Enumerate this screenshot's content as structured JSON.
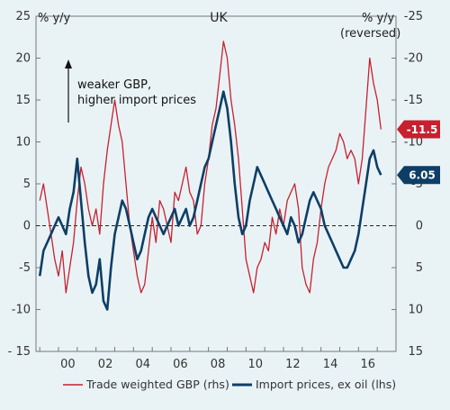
{
  "chart_data": {
    "type": "line",
    "title": "UK",
    "ylabel_left": "% y/y",
    "ylabel_right": "% y/y",
    "ylabel_right_note": "(reversed)",
    "annotation": [
      "weaker GBP,",
      "higher import prices"
    ],
    "x_ticks": [
      "00",
      "02",
      "04",
      "06",
      "08",
      "10",
      "12",
      "14",
      "16"
    ],
    "x_tick_years": [
      2000,
      2002,
      2004,
      2006,
      2008,
      2010,
      2012,
      2014,
      2016
    ],
    "xlim": [
      1998.8,
      2018.0
    ],
    "ylim": [
      -15,
      25
    ],
    "left_ticks": [
      -15,
      -10,
      -5,
      0,
      5,
      10,
      15,
      20,
      25
    ],
    "left_tick_labels": [
      "- 15",
      "-10",
      "-5",
      "0",
      "5",
      "10",
      "15",
      "20",
      "25"
    ],
    "right_ticks_labels": [
      "15",
      "10",
      "5",
      "0",
      "-5",
      "-10",
      "-15",
      "-20",
      "-25"
    ],
    "series": [
      {
        "name": "Trade weighted GBP (rhs)",
        "axis": "right",
        "reversed": true,
        "color": "#c8202f",
        "end_label": "-11.5",
        "x": [
          1999.0,
          1999.2,
          1999.4,
          1999.6,
          1999.8,
          2000.0,
          2000.2,
          2000.4,
          2000.6,
          2000.8,
          2001.0,
          2001.2,
          2001.4,
          2001.6,
          2001.8,
          2002.0,
          2002.2,
          2002.4,
          2002.6,
          2002.8,
          2003.0,
          2003.2,
          2003.4,
          2003.6,
          2003.8,
          2004.0,
          2004.2,
          2004.4,
          2004.6,
          2004.8,
          2005.0,
          2005.2,
          2005.4,
          2005.6,
          2005.8,
          2006.0,
          2006.2,
          2006.4,
          2006.6,
          2006.8,
          2007.0,
          2007.2,
          2007.4,
          2007.6,
          2007.8,
          2008.0,
          2008.2,
          2008.4,
          2008.6,
          2008.8,
          2009.0,
          2009.2,
          2009.4,
          2009.6,
          2009.8,
          2010.0,
          2010.2,
          2010.4,
          2010.6,
          2010.8,
          2011.0,
          2011.2,
          2011.4,
          2011.6,
          2011.8,
          2012.0,
          2012.2,
          2012.4,
          2012.6,
          2012.8,
          2013.0,
          2013.2,
          2013.4,
          2013.6,
          2013.8,
          2014.0,
          2014.2,
          2014.4,
          2014.6,
          2014.8,
          2015.0,
          2015.2,
          2015.4,
          2015.6,
          2015.8,
          2016.0,
          2016.2,
          2016.4,
          2016.6,
          2016.8,
          2017.0,
          2017.2
        ],
        "y": [
          -3,
          -5,
          -2,
          1,
          4,
          6,
          3,
          8,
          5,
          2,
          -3,
          -7,
          -5,
          -2,
          0,
          -2,
          1,
          -5,
          -9,
          -12,
          -15,
          -12,
          -10,
          -5,
          0,
          3,
          6,
          8,
          7,
          3,
          -1,
          2,
          -3,
          -2,
          0,
          2,
          -4,
          -3,
          -5,
          -7,
          -4,
          -3,
          1,
          0,
          -5,
          -8,
          -12,
          -14,
          -18,
          -22,
          -20,
          -15,
          -12,
          -8,
          -2,
          4,
          6,
          8,
          5,
          4,
          2,
          3,
          -1,
          1,
          -2,
          0,
          -3,
          -4,
          -5,
          -2,
          5,
          7,
          8,
          4,
          2,
          -2,
          -5,
          -7,
          -8,
          -9,
          -11,
          -10,
          -8,
          -9,
          -8,
          -5,
          -8,
          -14,
          -20,
          -17,
          -15,
          -11.5
        ]
      },
      {
        "name": "Import prices, ex oil (lhs)",
        "axis": "left",
        "reversed": false,
        "color": "#0e3e66",
        "end_label": "6.05",
        "x": [
          1999.0,
          1999.2,
          1999.4,
          1999.6,
          1999.8,
          2000.0,
          2000.2,
          2000.4,
          2000.6,
          2000.8,
          2001.0,
          2001.2,
          2001.4,
          2001.6,
          2001.8,
          2002.0,
          2002.2,
          2002.4,
          2002.6,
          2002.8,
          2003.0,
          2003.2,
          2003.4,
          2003.6,
          2003.8,
          2004.0,
          2004.2,
          2004.4,
          2004.6,
          2004.8,
          2005.0,
          2005.2,
          2005.4,
          2005.6,
          2005.8,
          2006.0,
          2006.2,
          2006.4,
          2006.6,
          2006.8,
          2007.0,
          2007.2,
          2007.4,
          2007.6,
          2007.8,
          2008.0,
          2008.2,
          2008.4,
          2008.6,
          2008.8,
          2009.0,
          2009.2,
          2009.4,
          2009.6,
          2009.8,
          2010.0,
          2010.2,
          2010.4,
          2010.6,
          2010.8,
          2011.0,
          2011.2,
          2011.4,
          2011.6,
          2011.8,
          2012.0,
          2012.2,
          2012.4,
          2012.6,
          2012.8,
          2013.0,
          2013.2,
          2013.4,
          2013.6,
          2013.8,
          2014.0,
          2014.2,
          2014.4,
          2014.6,
          2014.8,
          2015.0,
          2015.2,
          2015.4,
          2015.6,
          2015.8,
          2016.0,
          2016.2,
          2016.4,
          2016.6,
          2016.8,
          2017.0,
          2017.2
        ],
        "y": [
          -6,
          -3,
          -2,
          -1,
          0,
          1,
          0,
          -1,
          2,
          4,
          8,
          3,
          -2,
          -6,
          -8,
          -7,
          -4,
          -9,
          -10,
          -5,
          -1,
          1,
          3,
          2,
          0,
          -2,
          -4,
          -3,
          -1,
          1,
          2,
          1,
          0,
          -1,
          0,
          1,
          2,
          0,
          1,
          2,
          0,
          1,
          3,
          5,
          7,
          8,
          10,
          12,
          14,
          16,
          14,
          10,
          5,
          1,
          -1,
          0,
          3,
          5,
          7,
          6,
          5,
          4,
          3,
          2,
          1,
          0,
          -1,
          1,
          0,
          -2,
          -1,
          1,
          3,
          4,
          3,
          2,
          0,
          -1,
          -2,
          -3,
          -4,
          -5,
          -5,
          -4,
          -3,
          -1,
          2,
          5,
          8,
          9,
          7,
          6.05
        ]
      }
    ],
    "grid": false,
    "legend_position": "bottom"
  }
}
